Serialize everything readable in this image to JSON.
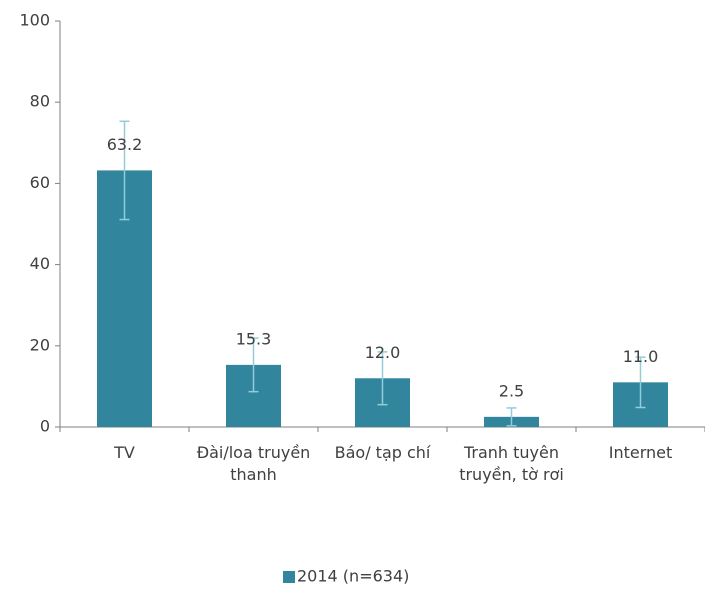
{
  "chart_data": {
    "type": "bar",
    "categories": [
      "TV",
      "Đài/loa truyền thanh",
      "Báo/ tạp chí",
      "Tranh tuyên truyền, tờ rơi",
      "Internet"
    ],
    "series": [
      {
        "name": "2014 (n=634)",
        "color": "#31859c",
        "values": [
          63.2,
          15.3,
          12.0,
          2.5,
          11.0
        ],
        "value_labels": [
          "63.2",
          "15.3",
          "12.0",
          "2.5",
          "11.0"
        ],
        "errors": [
          12.1,
          6.6,
          6.5,
          2.2,
          6.2
        ],
        "error_color": "#92cddc"
      }
    ],
    "ylim": [
      0,
      100
    ],
    "yticks": [
      0,
      20,
      40,
      60,
      80,
      100
    ],
    "grid": false,
    "legend": "bottom"
  }
}
